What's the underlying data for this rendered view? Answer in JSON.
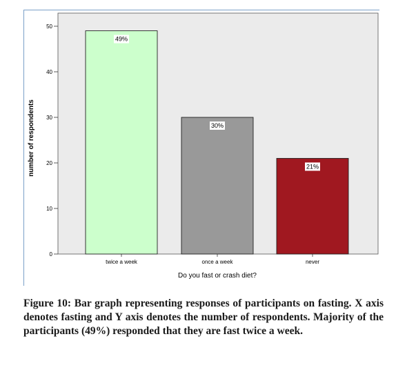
{
  "chart_data": {
    "type": "bar",
    "categories": [
      "twice a week",
      "once a week",
      "never"
    ],
    "values": [
      49,
      30,
      21
    ],
    "data_labels": [
      "49%",
      "30%",
      "21%"
    ],
    "bar_colors": [
      "#ccffcc",
      "#999999",
      "#a01820"
    ],
    "xlabel": "Do you fast or crash diet?",
    "ylabel": "number of respondents",
    "ylim": [
      0,
      50
    ],
    "yticks": [
      "0",
      "10",
      "20",
      "30",
      "40",
      "50"
    ],
    "plot_background": "#ebebeb",
    "grid": false
  },
  "caption": "Figure 10: Bar graph representing responses of participants on fasting. X axis denotes fasting and Y axis denotes the number of respondents. Majority of the participants (49%) responded that they are fast twice a week."
}
